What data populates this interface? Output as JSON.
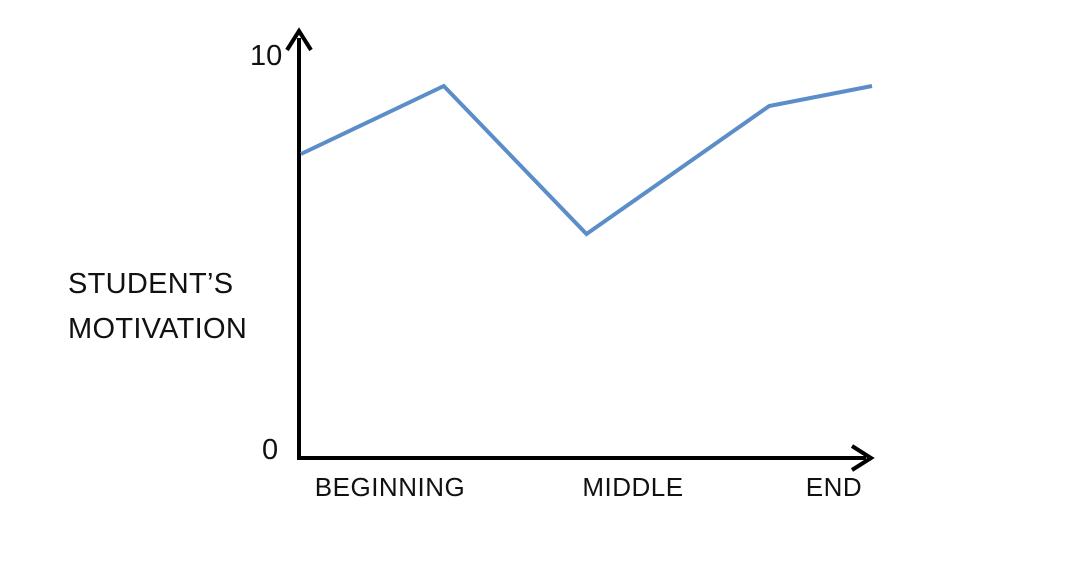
{
  "chart_data": {
    "type": "line",
    "title": "",
    "xlabel": "",
    "ylabel_lines": [
      "STUDENT’S",
      "MOTIVATION"
    ],
    "ylim": [
      0,
      10
    ],
    "y_ticks": [
      "0",
      "10"
    ],
    "x_ticks": [
      "BEGINNING",
      "MIDDLE",
      "END"
    ],
    "x_tick_positions": [
      0.25,
      0.5,
      0.94
    ],
    "series": [
      {
        "color": "#5b8dc9",
        "points": [
          {
            "x": 0.0,
            "y": 7.6
          },
          {
            "x": 0.25,
            "y": 9.3
          },
          {
            "x": 0.5,
            "y": 5.6
          },
          {
            "x": 0.82,
            "y": 8.8
          },
          {
            "x": 1.0,
            "y": 9.3
          }
        ]
      }
    ],
    "grid": false,
    "legend": "none"
  }
}
